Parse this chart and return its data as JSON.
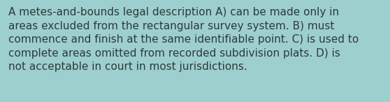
{
  "background_color": "#9ecfcf",
  "text_color": "#2d3a3a",
  "text": "A metes-and-bounds legal description A) can be made only in\nareas excluded from the rectangular survey system. B) must\ncommence and finish at the same identifiable point. C) is used to\ncomplete areas omitted from recorded subdivision plats. D) is\nnot acceptable in court in most jurisdictions.",
  "font_size": 11.0,
  "font_family": "DejaVu Sans",
  "fig_width": 5.58,
  "fig_height": 1.46,
  "dpi": 100
}
